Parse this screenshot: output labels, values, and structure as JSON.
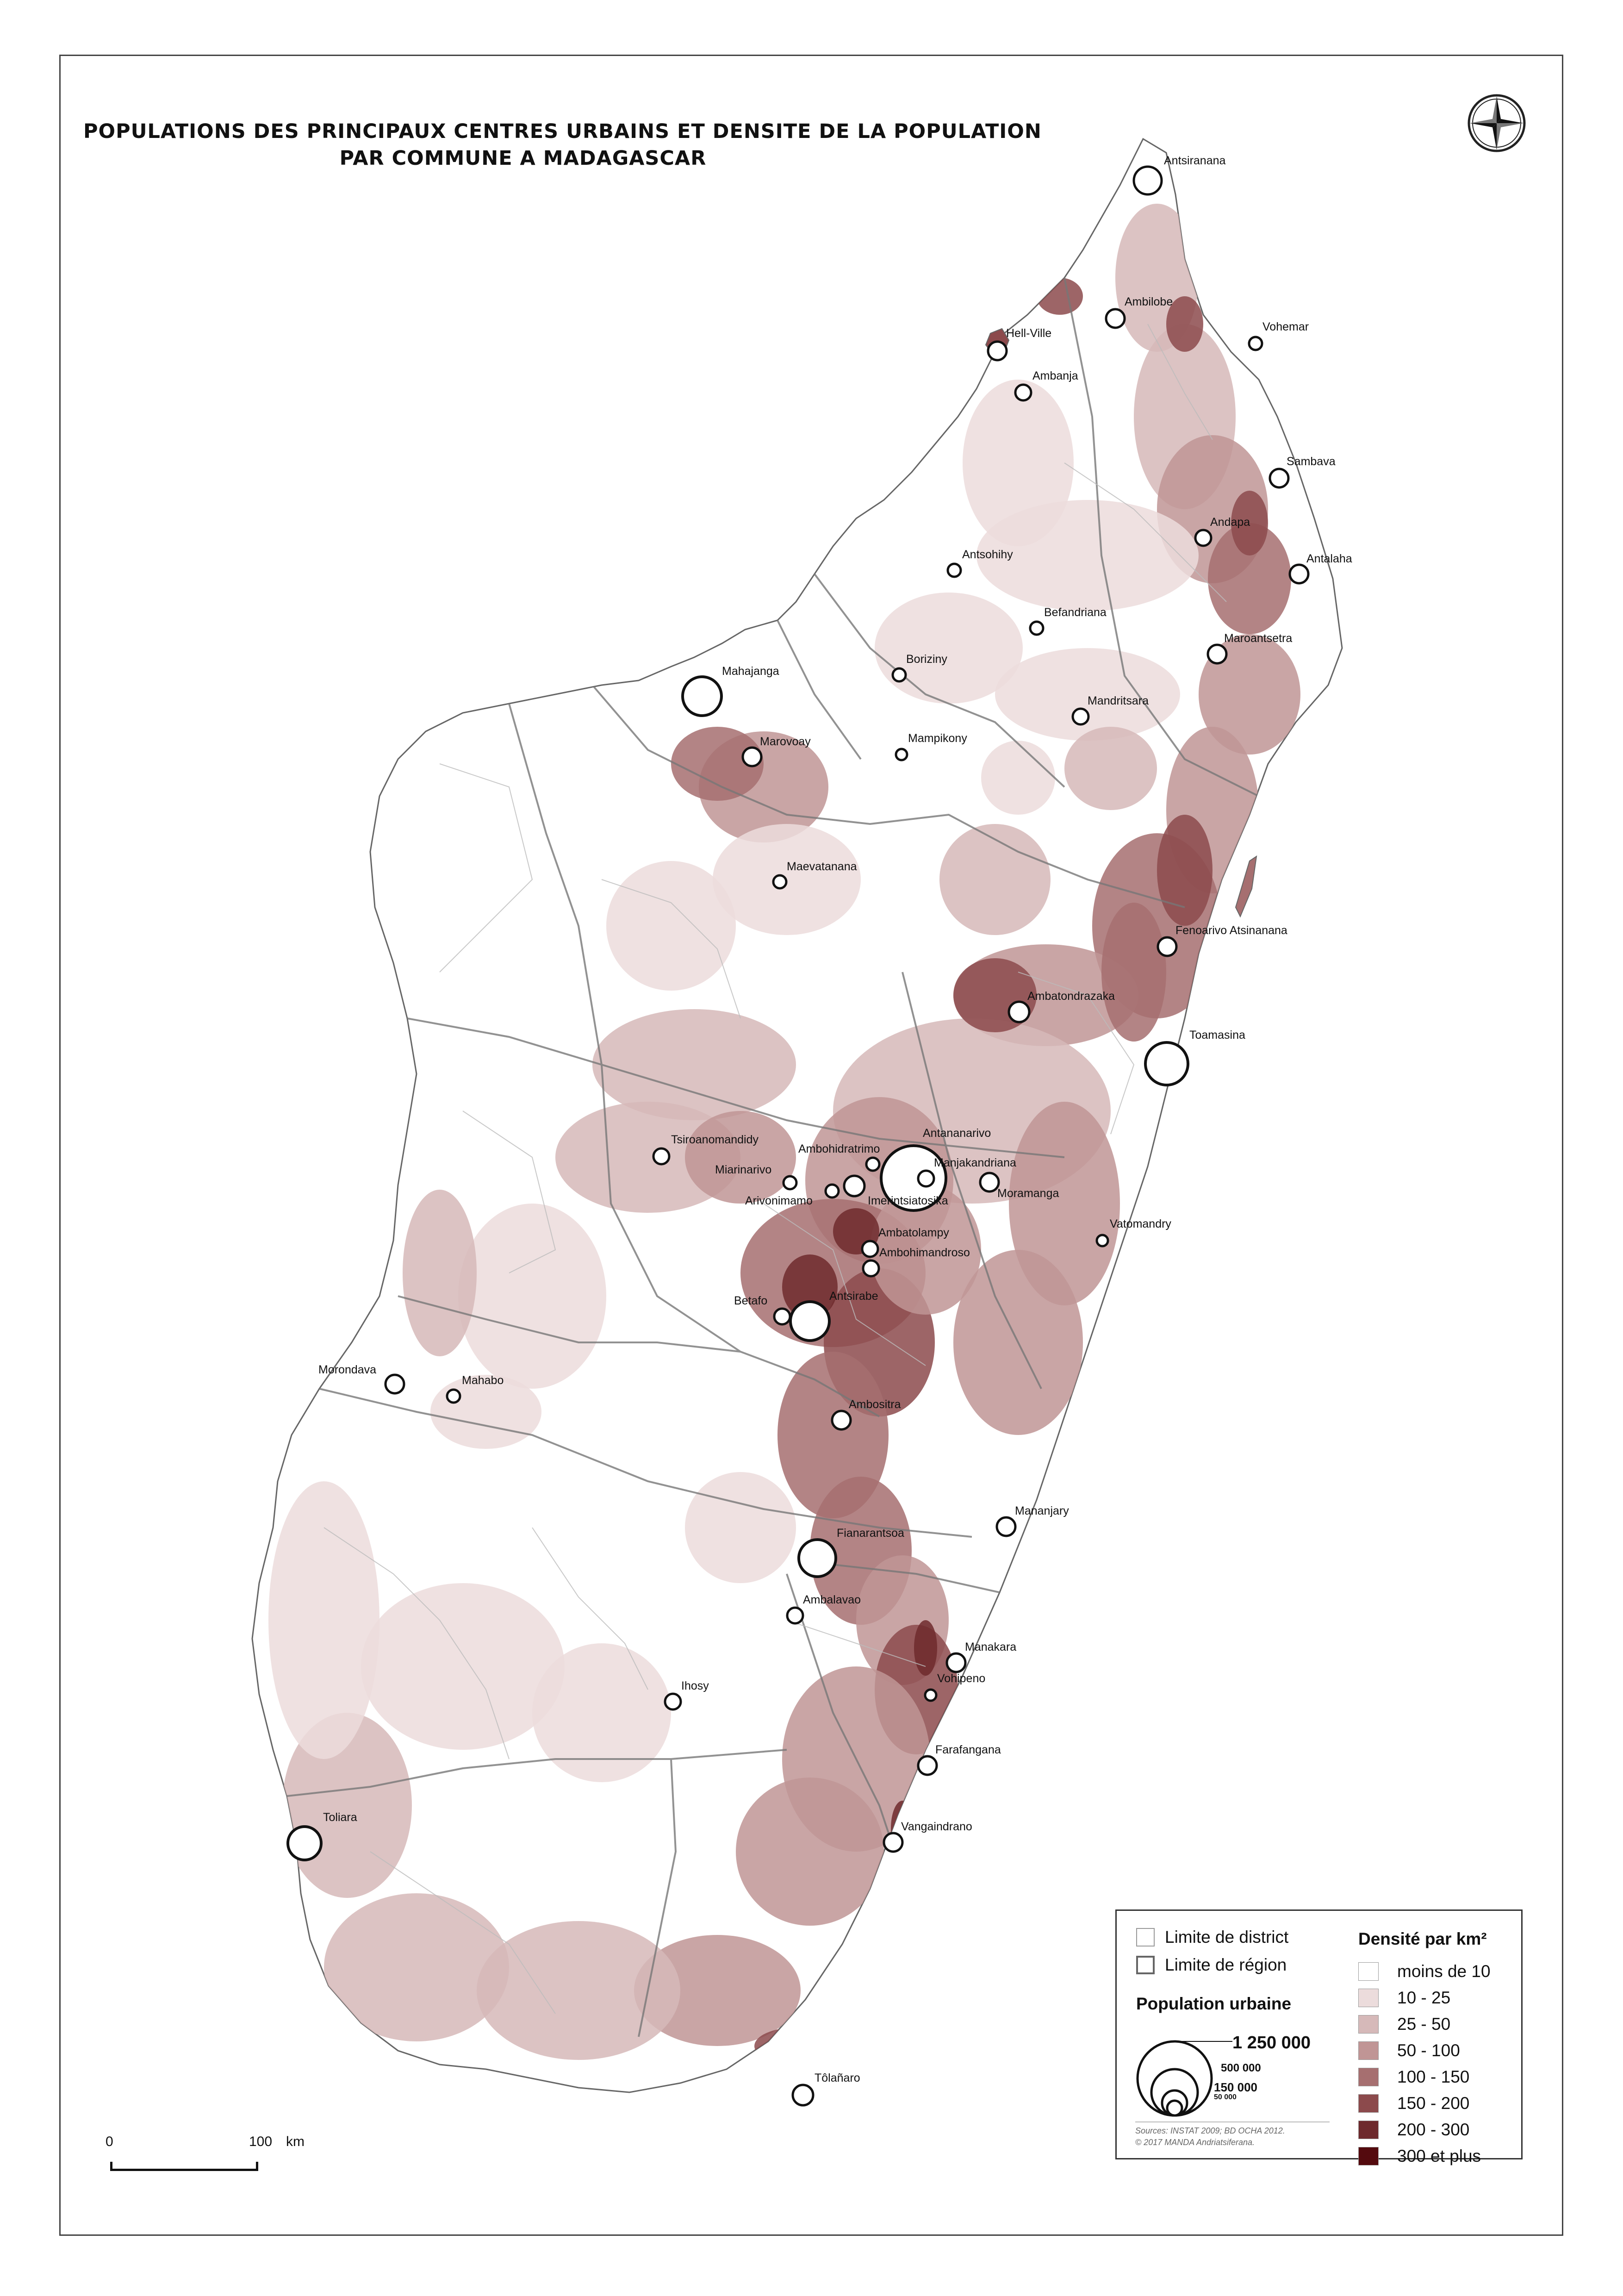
{
  "title": {
    "line1": "POPULATIONS DES PRINCIPAUX CENTRES URBAINS ET DENSITE DE LA POPULATION",
    "line2": "PAR COMMUNE A MADAGASCAR"
  },
  "compass_icon": "compass-rose-icon",
  "cities": [
    {
      "name": "Antsiranana"
    },
    {
      "name": "Ambilobe"
    },
    {
      "name": "Vohemar"
    },
    {
      "name": "Hell-Ville"
    },
    {
      "name": "Ambanja"
    },
    {
      "name": "Sambava"
    },
    {
      "name": "Andapa"
    },
    {
      "name": "Antalaha"
    },
    {
      "name": "Antsohihy"
    },
    {
      "name": "Befandriana"
    },
    {
      "name": "Maroantsetra"
    },
    {
      "name": "Mahajanga"
    },
    {
      "name": "Boriziny"
    },
    {
      "name": "Mandritsara"
    },
    {
      "name": "Marovoay"
    },
    {
      "name": "Mampikony"
    },
    {
      "name": "Maevatanana"
    },
    {
      "name": "Fenoarivo Atsinanana"
    },
    {
      "name": "Ambatondrazaka"
    },
    {
      "name": "Toamasina"
    },
    {
      "name": "Tsiroanomandidy"
    },
    {
      "name": "Ambohidratrimo"
    },
    {
      "name": "Antananarivo"
    },
    {
      "name": "Miarinarivo"
    },
    {
      "name": "Manjakandriana"
    },
    {
      "name": "Arivonimamo"
    },
    {
      "name": "Imerintsiatosika"
    },
    {
      "name": "Moramanga"
    },
    {
      "name": "Vatomandry"
    },
    {
      "name": "Ambatolampy"
    },
    {
      "name": "Ambohimandroso"
    },
    {
      "name": "Betafo"
    },
    {
      "name": "Antsirabe"
    },
    {
      "name": "Morondava"
    },
    {
      "name": "Mahabo"
    },
    {
      "name": "Ambositra"
    },
    {
      "name": "Mananjary"
    },
    {
      "name": "Fianarantsoa"
    },
    {
      "name": "Ambalavao"
    },
    {
      "name": "Manakara"
    },
    {
      "name": "Ihosy"
    },
    {
      "name": "Vohipeno"
    },
    {
      "name": "Farafangana"
    },
    {
      "name": "Vangaindrano"
    },
    {
      "name": "Toliara"
    },
    {
      "name": "Tôlañaro"
    }
  ],
  "scale": {
    "start": "0",
    "end": "100",
    "unit": "km"
  },
  "legend": {
    "district_label": "Limite de district",
    "region_label": "Limite de région",
    "population_title": "Population urbaine",
    "population_values": [
      "1 250 000",
      "500 000",
      "150 000",
      "50 000"
    ],
    "density_title": "Densité par km²",
    "density_classes": [
      {
        "label": "moins de 10",
        "color": "#ffffff"
      },
      {
        "label": "10 - 25",
        "color": "#ecdcdc"
      },
      {
        "label": "25 - 50",
        "color": "#d6b9b9"
      },
      {
        "label": "50 - 100",
        "color": "#c09595"
      },
      {
        "label": "100 - 150",
        "color": "#a66f70"
      },
      {
        "label": "150 - 200",
        "color": "#8c4a4c"
      },
      {
        "label": "200 - 300",
        "color": "#6e2a2d"
      },
      {
        "label": "300 et plus",
        "color": "#540a0e"
      }
    ],
    "sources_line1": "Sources: INSTAT 2009; BD OCHA 2012.",
    "sources_line2": "© 2017 MANDA Andriatsiferana."
  }
}
